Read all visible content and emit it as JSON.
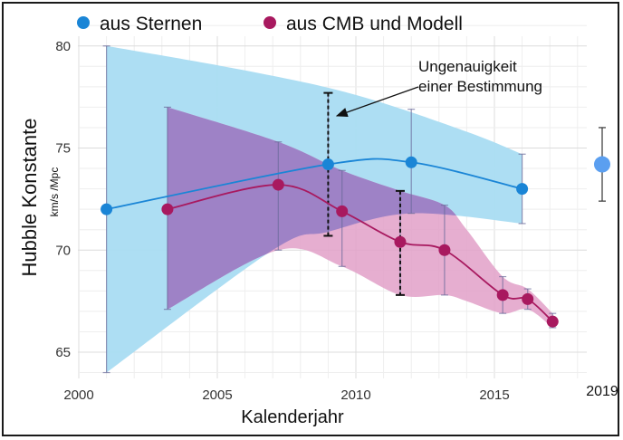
{
  "chart_data": {
    "type": "line",
    "xlabel": "Kalenderjahr",
    "ylabel": "Hubble Konstante",
    "yunit": "km/s /Mpc",
    "xlim": [
      1999.8,
      2017.9
    ],
    "ylim": [
      63.8,
      81
    ],
    "x_ticks": [
      2000,
      2005,
      2010,
      2015
    ],
    "y_ticks": [
      65,
      70,
      75,
      80
    ],
    "extra_x_tick": "2019",
    "grid": true,
    "legend_position": "top-left",
    "colors": {
      "stars": "#1a85d6",
      "stars_band": "#a9dcf2",
      "cmb": "#a8195f",
      "cmb_band": "#e2a0c8",
      "overlap": "#9e82c6",
      "marker_2019": "#5b9ff0"
    },
    "series": [
      {
        "name": "aus Sternen",
        "x": [
          2001,
          2009,
          2012,
          2016
        ],
        "y": [
          72.0,
          74.2,
          74.3,
          73.0
        ],
        "err_low": [
          64.0,
          70.7,
          71.8,
          71.3
        ],
        "err_high": [
          80.0,
          77.7,
          76.9,
          74.7
        ],
        "band_upper_x": [
          2001,
          2006,
          2010,
          2014,
          2016
        ],
        "band_upper_y": [
          80.0,
          78.8,
          77.6,
          75.8,
          74.7
        ],
        "band_lower_x": [
          2016,
          2012,
          2009,
          2007,
          2001
        ],
        "band_lower_y": [
          71.3,
          71.8,
          70.9,
          70.0,
          64.0
        ]
      },
      {
        "name": "aus CMB und Modell",
        "x": [
          2003.2,
          2007.2,
          2009.5,
          2011.6,
          2013.2,
          2015.3,
          2016.2,
          2017.1
        ],
        "y": [
          72.0,
          73.2,
          71.9,
          70.4,
          70.0,
          67.8,
          67.6,
          66.5
        ],
        "err_low": [
          67.1,
          70.0,
          69.2,
          67.8,
          67.8,
          66.9,
          67.1,
          66.2
        ],
        "err_high": [
          77.0,
          75.3,
          73.9,
          72.9,
          72.2,
          68.7,
          68.1,
          66.9
        ],
        "band_upper_x": [
          2003.2,
          2007.2,
          2009.5,
          2011.6,
          2013.2,
          2014.0,
          2015.3,
          2016.2,
          2017.1
        ],
        "band_upper_y": [
          77.0,
          75.3,
          73.9,
          72.9,
          72.2,
          71.0,
          68.7,
          68.1,
          66.9
        ],
        "band_lower_x": [
          2017.1,
          2016.2,
          2015.3,
          2014.0,
          2013.2,
          2011.6,
          2009.5,
          2007.2,
          2003.2
        ],
        "band_lower_y": [
          66.2,
          67.1,
          66.9,
          67.5,
          67.8,
          67.8,
          69.2,
          70.0,
          67.1
        ]
      }
    ],
    "point_2019": {
      "label": "2019",
      "y": 74.2,
      "err_low": 72.4,
      "err_high": 76.0
    },
    "uncertainty_bars": [
      {
        "x": 2009,
        "low": 70.7,
        "high": 77.7
      },
      {
        "x": 2011.6,
        "low": 67.8,
        "high": 72.9
      }
    ],
    "annotation": {
      "line1": "Ungenauigkeit",
      "line2": "einer Bestimmung"
    }
  }
}
